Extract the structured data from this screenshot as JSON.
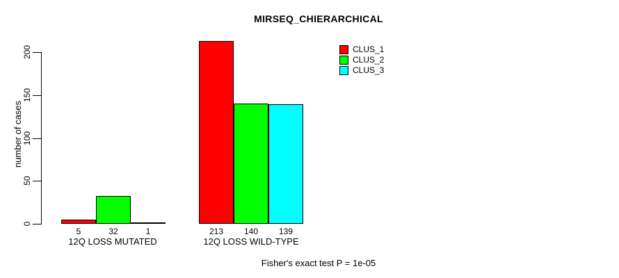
{
  "chart_data": {
    "type": "bar",
    "title": "MIRSEQ_CHIERARCHICAL",
    "xlabel": "",
    "ylabel": "number of cases",
    "categories": [
      "12Q LOSS MUTATED",
      "12Q LOSS WILD-TYPE"
    ],
    "series": [
      {
        "name": "CLUS_1",
        "color": "#ff0000",
        "values": [
          5,
          213
        ]
      },
      {
        "name": "CLUS_2",
        "color": "#00ff00",
        "values": [
          32,
          140
        ]
      },
      {
        "name": "CLUS_3",
        "color": "#00ffff",
        "values": [
          1,
          139
        ]
      }
    ],
    "yticks": [
      0,
      50,
      100,
      150,
      200
    ],
    "ylim": [
      0,
      213
    ],
    "grid": false,
    "legend_position": "top-right",
    "legend_entries": [
      "CLUS_1",
      "CLUS_2",
      "CLUS_3"
    ],
    "annotation": "Fisher's exact test P = 1e-05"
  },
  "colors": {
    "background": "#ffffff",
    "axis": "#000000",
    "text": "#000000",
    "clus_1": "#ff0000",
    "clus_2": "#00ff00",
    "clus_3": "#00ffff"
  }
}
